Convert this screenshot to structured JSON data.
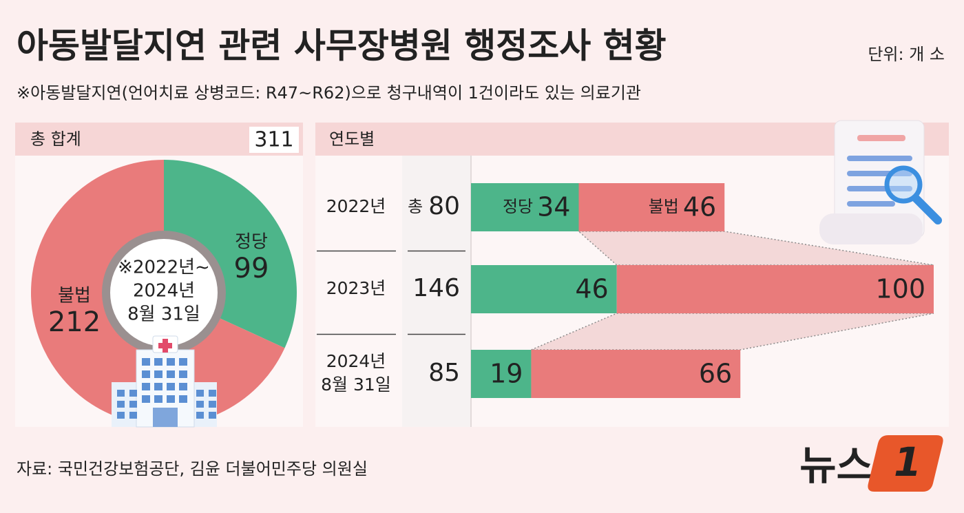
{
  "header": {
    "title": "아동발달지연 관련 사무장병원 행정조사 현황",
    "unit": "단위: 개 소",
    "subtitle": "※아동발달지연(언어치료 상병코드: R47~R62)으로 청구내역이 1건이라도 있는 의료기관"
  },
  "chart_data": [
    {
      "type": "pie",
      "title": "총 합계",
      "total": 311,
      "categories": [
        "정당",
        "불법"
      ],
      "values": [
        99,
        212
      ],
      "colors": [
        "#4db58a",
        "#e97b7b"
      ],
      "center_label": [
        "※2022년~",
        "2024년",
        "8월 31일"
      ]
    },
    {
      "type": "bar",
      "title": "연도별",
      "orientation": "horizontal",
      "stacked": true,
      "categories": [
        [
          "2022년"
        ],
        [
          "2023년"
        ],
        [
          "2024년",
          "8월 31일"
        ]
      ],
      "total_prefix": "총",
      "totals": [
        80,
        146,
        85
      ],
      "series": [
        {
          "name": "정당",
          "color": "#4db58a",
          "values": [
            34,
            46,
            19
          ]
        },
        {
          "name": "불법",
          "color": "#e97b7b",
          "values": [
            46,
            100,
            66
          ]
        }
      ]
    }
  ],
  "source": "자료: 국민건강보험공단, 김윤 더불어민주당 의원실",
  "logo": {
    "text": "뉴스",
    "number": "1"
  }
}
